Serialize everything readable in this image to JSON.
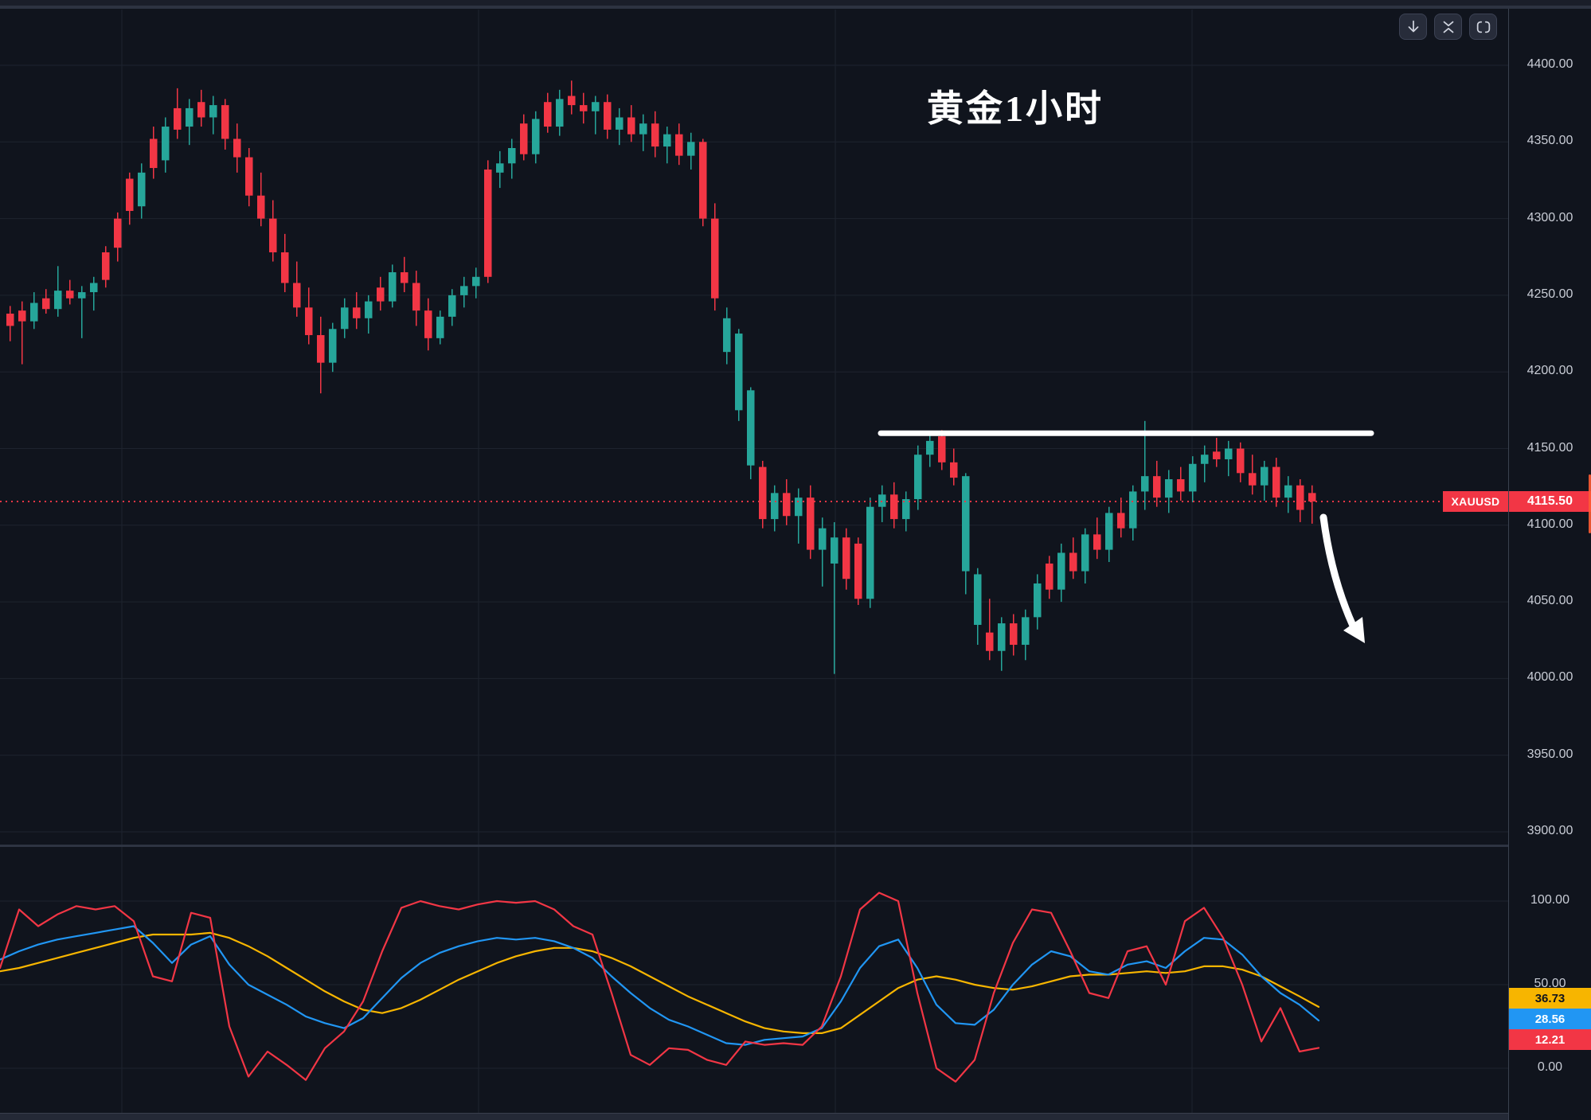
{
  "title": "黄金1小时",
  "toolbar": {
    "buttons": [
      {
        "name": "scroll-to-latest",
        "icon": "arrow-down-icon"
      },
      {
        "name": "collapse-pane",
        "icon": "collapse-icon"
      },
      {
        "name": "fullscreen",
        "icon": "fullscreen-icon"
      }
    ]
  },
  "price_line": {
    "symbol": "XAUUSD",
    "price_label": "4115.50",
    "price": 4115.5,
    "color": "#f23645"
  },
  "colors": {
    "background": "#10141d",
    "grid": "#1e232e",
    "up": "#26a69a",
    "down": "#f23645",
    "kdj_j": "#f23645",
    "kdj_k": "#2196f3",
    "kdj_d": "#f7b500",
    "annotation": "#ffffff",
    "axis_text": "#c9cdd6"
  },
  "price_axis": {
    "labels": [
      "4400.00",
      "4350.00",
      "4300.00",
      "4250.00",
      "4200.00",
      "4150.00",
      "4100.00",
      "4050.00",
      "4000.00",
      "3950.00",
      "3900.00"
    ],
    "values": [
      4400,
      4350,
      4300,
      4250,
      4200,
      4150,
      4100,
      4050,
      4000,
      3950,
      3900
    ]
  },
  "indicator_axis": {
    "labels": [
      {
        "text": "100.00",
        "value": 100
      },
      {
        "text": "50.00",
        "value": 50
      },
      {
        "text": "0.00",
        "value": 0
      }
    ],
    "badges": [
      {
        "text": "36.73",
        "value": 36.73,
        "bg": "#f7b500",
        "fg": "#10141d"
      },
      {
        "text": "28.56",
        "value": 28.56,
        "bg": "#2196f3",
        "fg": "#ffffff"
      },
      {
        "text": "12.21",
        "value": 12.21,
        "bg": "#f23645",
        "fg": "#ffffff"
      }
    ]
  },
  "chart_data": [
    {
      "type": "candlestick",
      "title": "黄金1小时",
      "symbol": "XAUUSD",
      "last_price": 4115.5,
      "ylim": [
        3900,
        4400
      ],
      "ytick_step": 50,
      "grid": true,
      "up_color": "#26a69a",
      "down_color": "#f23645",
      "candles_ohlc": [
        [
          4238,
          4243,
          4220,
          4230
        ],
        [
          4240,
          4246,
          4205,
          4233
        ],
        [
          4233,
          4252,
          4228,
          4245
        ],
        [
          4248,
          4254,
          4238,
          4241
        ],
        [
          4241,
          4269,
          4236,
          4253
        ],
        [
          4253,
          4260,
          4244,
          4248
        ],
        [
          4248,
          4256,
          4222,
          4252
        ],
        [
          4252,
          4262,
          4240,
          4258
        ],
        [
          4278,
          4282,
          4255,
          4260
        ],
        [
          4300,
          4304,
          4272,
          4281
        ],
        [
          4326,
          4330,
          4296,
          4305
        ],
        [
          4308,
          4336,
          4300,
          4330
        ],
        [
          4352,
          4360,
          4326,
          4333
        ],
        [
          4338,
          4366,
          4330,
          4360
        ],
        [
          4372,
          4385,
          4352,
          4358
        ],
        [
          4360,
          4378,
          4348,
          4372
        ],
        [
          4376,
          4384,
          4360,
          4366
        ],
        [
          4366,
          4380,
          4355,
          4374
        ],
        [
          4374,
          4378,
          4345,
          4352
        ],
        [
          4352,
          4362,
          4330,
          4340
        ],
        [
          4340,
          4346,
          4308,
          4315
        ],
        [
          4315,
          4330,
          4295,
          4300
        ],
        [
          4300,
          4312,
          4272,
          4278
        ],
        [
          4278,
          4290,
          4252,
          4258
        ],
        [
          4258,
          4272,
          4236,
          4242
        ],
        [
          4242,
          4255,
          4218,
          4224
        ],
        [
          4224,
          4236,
          4186,
          4206
        ],
        [
          4206,
          4232,
          4200,
          4228
        ],
        [
          4228,
          4248,
          4222,
          4242
        ],
        [
          4242,
          4252,
          4228,
          4235
        ],
        [
          4235,
          4250,
          4225,
          4246
        ],
        [
          4255,
          4262,
          4240,
          4246
        ],
        [
          4246,
          4270,
          4242,
          4265
        ],
        [
          4265,
          4275,
          4252,
          4258
        ],
        [
          4258,
          4266,
          4230,
          4240
        ],
        [
          4240,
          4248,
          4214,
          4222
        ],
        [
          4222,
          4240,
          4218,
          4236
        ],
        [
          4236,
          4254,
          4230,
          4250
        ],
        [
          4250,
          4262,
          4242,
          4256
        ],
        [
          4256,
          4268,
          4248,
          4262
        ],
        [
          4332,
          4338,
          4258,
          4262
        ],
        [
          4330,
          4344,
          4320,
          4336
        ],
        [
          4336,
          4352,
          4326,
          4346
        ],
        [
          4362,
          4368,
          4338,
          4342
        ],
        [
          4342,
          4370,
          4336,
          4365
        ],
        [
          4376,
          4382,
          4356,
          4360
        ],
        [
          4360,
          4384,
          4354,
          4378
        ],
        [
          4380,
          4390,
          4368,
          4374
        ],
        [
          4374,
          4382,
          4362,
          4370
        ],
        [
          4370,
          4380,
          4355,
          4376
        ],
        [
          4376,
          4381,
          4352,
          4358
        ],
        [
          4358,
          4372,
          4348,
          4366
        ],
        [
          4366,
          4374,
          4350,
          4355
        ],
        [
          4355,
          4368,
          4344,
          4362
        ],
        [
          4362,
          4370,
          4340,
          4347
        ],
        [
          4347,
          4360,
          4336,
          4355
        ],
        [
          4355,
          4362,
          4335,
          4341
        ],
        [
          4341,
          4356,
          4332,
          4350
        ],
        [
          4350,
          4352,
          4295,
          4300
        ],
        [
          4300,
          4310,
          4240,
          4248
        ],
        [
          4213,
          4242,
          4205,
          4235
        ],
        [
          4175,
          4228,
          4168,
          4225
        ],
        [
          4139,
          4190,
          4130,
          4188
        ],
        [
          4138,
          4142,
          4098,
          4104
        ],
        [
          4104,
          4126,
          4096,
          4121
        ],
        [
          4121,
          4130,
          4100,
          4106
        ],
        [
          4106,
          4124,
          4088,
          4118
        ],
        [
          4118,
          4126,
          4078,
          4084
        ],
        [
          4084,
          4105,
          4060,
          4098
        ],
        [
          4075,
          4102,
          4003,
          4092
        ],
        [
          4092,
          4098,
          4058,
          4065
        ],
        [
          4088,
          4092,
          4048,
          4052
        ],
        [
          4052,
          4118,
          4046,
          4112
        ],
        [
          4112,
          4126,
          4102,
          4120
        ],
        [
          4120,
          4128,
          4098,
          4104
        ],
        [
          4104,
          4122,
          4096,
          4117
        ],
        [
          4117,
          4152,
          4110,
          4146
        ],
        [
          4146,
          4160,
          4138,
          4155
        ],
        [
          4158,
          4162,
          4136,
          4141
        ],
        [
          4141,
          4150,
          4126,
          4131
        ],
        [
          4070,
          4134,
          4055,
          4132
        ],
        [
          4035,
          4072,
          4022,
          4068
        ],
        [
          4030,
          4052,
          4012,
          4018
        ],
        [
          4018,
          4040,
          4005,
          4036
        ],
        [
          4036,
          4042,
          4015,
          4022
        ],
        [
          4022,
          4045,
          4012,
          4040
        ],
        [
          4040,
          4068,
          4032,
          4062
        ],
        [
          4075,
          4080,
          4052,
          4058
        ],
        [
          4058,
          4088,
          4050,
          4082
        ],
        [
          4082,
          4092,
          4065,
          4070
        ],
        [
          4070,
          4098,
          4062,
          4094
        ],
        [
          4094,
          4105,
          4078,
          4084
        ],
        [
          4084,
          4112,
          4076,
          4108
        ],
        [
          4108,
          4118,
          4092,
          4098
        ],
        [
          4098,
          4126,
          4090,
          4122
        ],
        [
          4122,
          4168,
          4110,
          4132
        ],
        [
          4132,
          4142,
          4112,
          4118
        ],
        [
          4118,
          4136,
          4108,
          4130
        ],
        [
          4130,
          4138,
          4116,
          4122
        ],
        [
          4122,
          4145,
          4115,
          4140
        ],
        [
          4140,
          4152,
          4128,
          4146
        ],
        [
          4148,
          4157,
          4138,
          4143
        ],
        [
          4143,
          4155,
          4132,
          4150
        ],
        [
          4150,
          4154,
          4128,
          4134
        ],
        [
          4134,
          4146,
          4120,
          4126
        ],
        [
          4126,
          4142,
          4116,
          4138
        ],
        [
          4138,
          4144,
          4112,
          4118
        ],
        [
          4118,
          4132,
          4108,
          4126
        ],
        [
          4126,
          4130,
          4102,
          4110
        ],
        [
          4121,
          4126,
          4101,
          4115.5
        ]
      ],
      "annotations": {
        "resistance_line": {
          "price": 4160,
          "color": "#ffffff"
        },
        "down_arrow": {
          "from_price": 4108,
          "to_price": 4025,
          "color": "#ffffff"
        },
        "last_price_dotted_line": {
          "price": 4115.5,
          "color": "#f23645",
          "style": "dotted"
        }
      }
    },
    {
      "type": "line",
      "ylim": [
        0,
        100
      ],
      "ytick_labels": [
        100,
        50,
        0
      ],
      "grid": true,
      "legend_position": "right-badges",
      "series": [
        {
          "name": "slow-yellow",
          "color": "#f7b500",
          "last_value": 36.73,
          "values": [
            58,
            60,
            63,
            66,
            69,
            72,
            75,
            78,
            80,
            80,
            80,
            81,
            78,
            73,
            67,
            60,
            53,
            46,
            40,
            35,
            33,
            36,
            41,
            47,
            53,
            58,
            63,
            67,
            70,
            72,
            72,
            70,
            66,
            61,
            55,
            49,
            43,
            38,
            33,
            28,
            24,
            22,
            21,
            21,
            24,
            32,
            40,
            48,
            53,
            55,
            53,
            50,
            48,
            47,
            49,
            52,
            55,
            56,
            56,
            57,
            58,
            57,
            58,
            61,
            61,
            59,
            55,
            49,
            43,
            36.73
          ]
        },
        {
          "name": "mid-blue",
          "color": "#2196f3",
          "last_value": 28.56,
          "values": [
            65,
            70,
            74,
            77,
            79,
            81,
            83,
            85,
            75,
            63,
            74,
            79,
            62,
            50,
            44,
            38,
            31,
            27,
            24,
            30,
            42,
            54,
            63,
            69,
            73,
            76,
            78,
            77,
            78,
            76,
            72,
            66,
            55,
            45,
            36,
            29,
            25,
            20,
            15,
            14,
            17,
            18,
            19,
            24,
            40,
            60,
            73,
            77,
            60,
            38,
            27,
            26,
            35,
            50,
            62,
            70,
            67,
            58,
            56,
            62,
            64,
            60,
            70,
            78,
            77,
            68,
            55,
            45,
            38,
            28.56
          ]
        },
        {
          "name": "fast-red",
          "color": "#f23645",
          "last_value": 12.21,
          "values": [
            60,
            95,
            85,
            92,
            97,
            95,
            97,
            88,
            55,
            52,
            93,
            90,
            25,
            -5,
            10,
            2,
            -7,
            12,
            22,
            40,
            70,
            96,
            100,
            97,
            95,
            98,
            100,
            99,
            100,
            95,
            85,
            80,
            45,
            8,
            2,
            12,
            11,
            5,
            2,
            16,
            14,
            15,
            14,
            25,
            55,
            95,
            105,
            100,
            45,
            0,
            -8,
            5,
            45,
            75,
            95,
            93,
            70,
            45,
            42,
            70,
            73,
            50,
            88,
            96,
            78,
            50,
            16,
            36,
            10,
            12.21
          ]
        }
      ]
    }
  ]
}
